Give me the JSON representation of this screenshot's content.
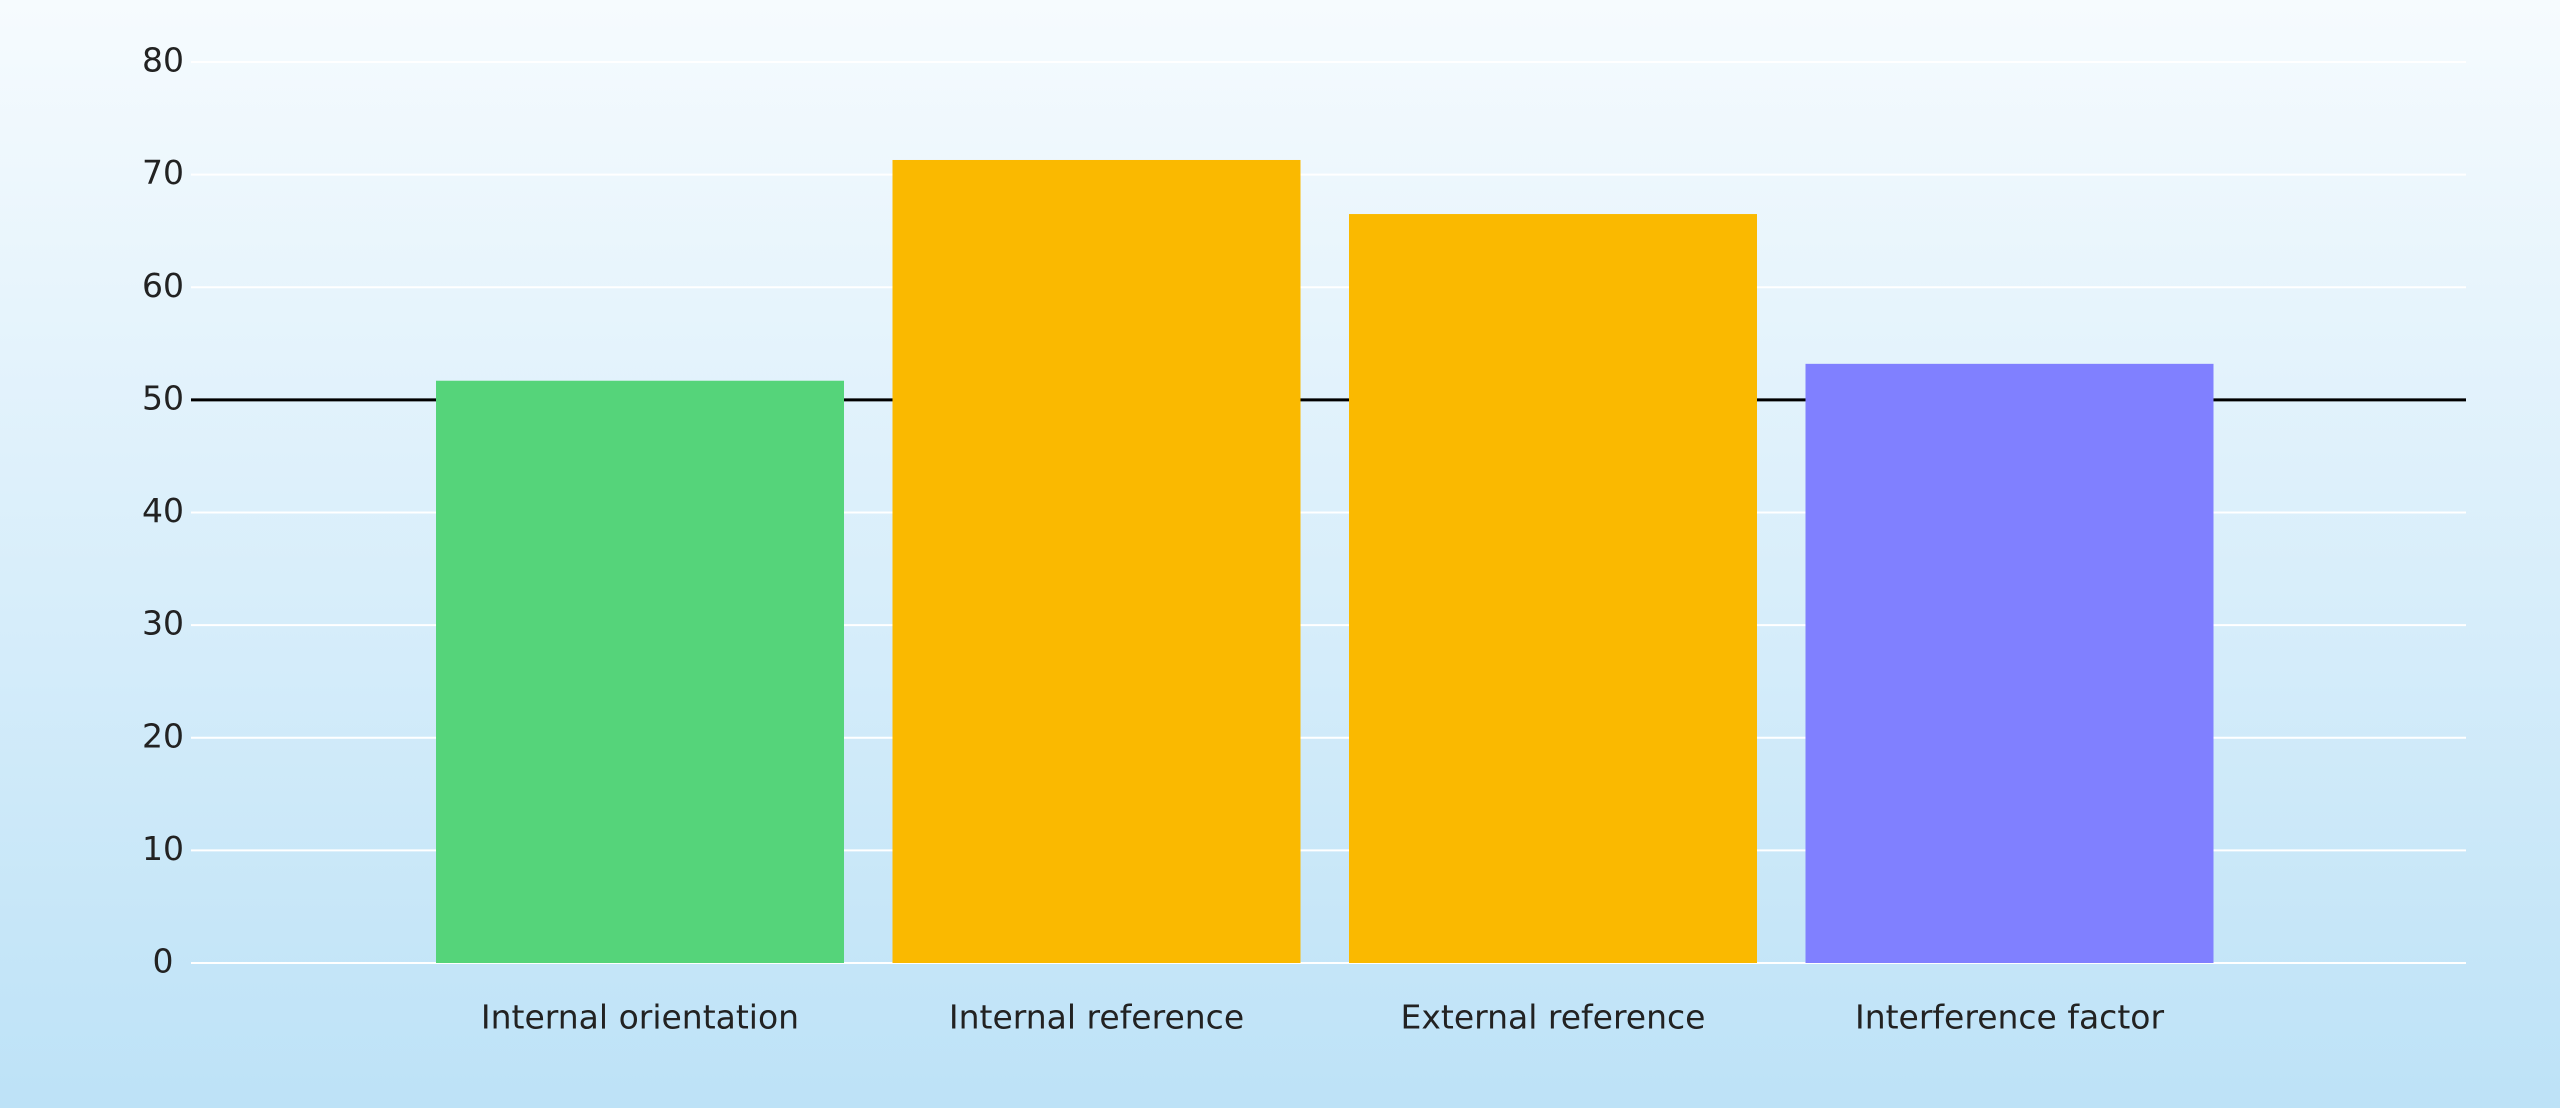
{
  "chart_data": {
    "type": "bar",
    "categories": [
      "Internal orientation",
      "Internal reference",
      "External reference",
      "Interference factor"
    ],
    "values": [
      51.7,
      71.3,
      66.5,
      53.2
    ],
    "colors": [
      "#55d47a",
      "#fab900",
      "#fab900",
      "#8080ff"
    ],
    "ylim": [
      0,
      80
    ],
    "yticks": [
      0,
      10,
      20,
      30,
      40,
      50,
      60,
      70,
      80
    ],
    "grid": true,
    "reference_line": 50
  }
}
